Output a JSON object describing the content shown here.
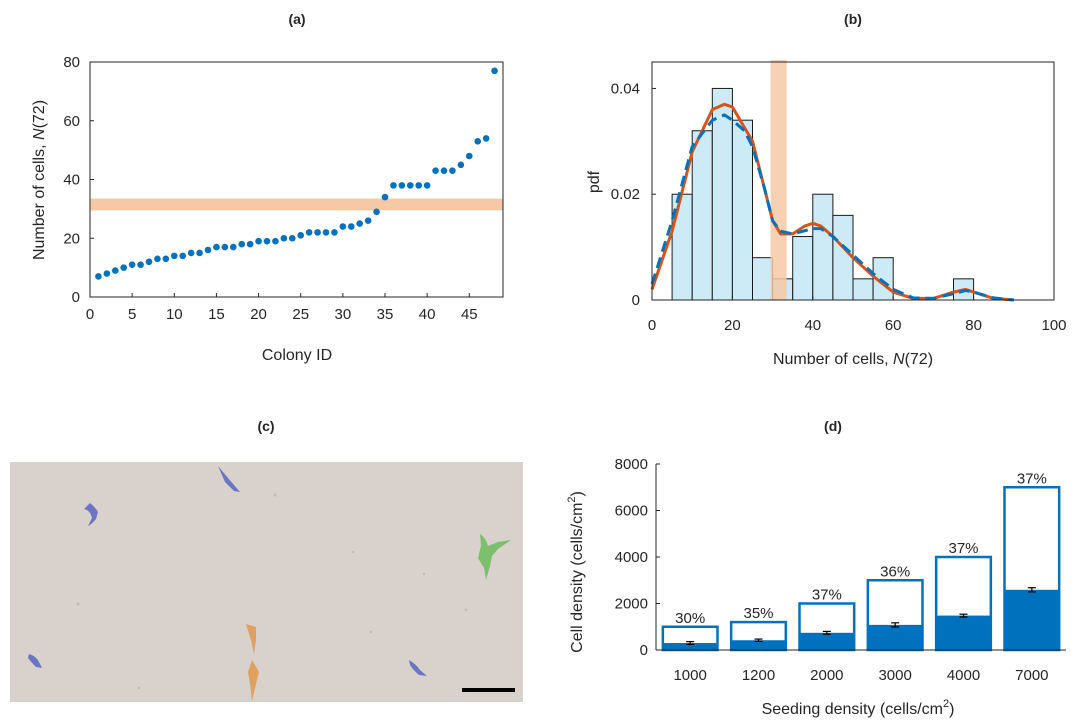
{
  "chart_data": [
    {
      "panel": "(a)",
      "type": "scatter",
      "xlabel": "Colony ID",
      "ylabel_prefix": "Number of cells, ",
      "ylabel_var": "N",
      "ylabel_suffix": "(72)",
      "xlim": [
        0,
        49
      ],
      "ylim": [
        0,
        80
      ],
      "xticks": [
        0,
        5,
        10,
        15,
        20,
        25,
        30,
        35,
        40,
        45
      ],
      "yticks": [
        0,
        20,
        40,
        60,
        80
      ],
      "band": [
        29.5,
        33.5
      ],
      "colors": {
        "points": "#0072BD",
        "band": "#F5C9A6"
      },
      "x": [
        1,
        2,
        3,
        4,
        5,
        6,
        7,
        8,
        9,
        10,
        11,
        12,
        13,
        14,
        15,
        16,
        17,
        18,
        19,
        20,
        21,
        22,
        23,
        24,
        25,
        26,
        27,
        28,
        29,
        30,
        31,
        32,
        33,
        34,
        35,
        36,
        37,
        38,
        39,
        40,
        41,
        42,
        43,
        44,
        45,
        46,
        47,
        48
      ],
      "y": [
        7,
        8,
        9,
        10,
        11,
        11,
        12,
        13,
        13,
        14,
        14,
        15,
        15,
        16,
        17,
        17,
        17,
        18,
        18,
        19,
        19,
        19,
        20,
        20,
        21,
        22,
        22,
        22,
        22,
        24,
        24,
        25,
        26,
        29,
        34,
        38,
        38,
        38,
        38,
        38,
        43,
        43,
        43,
        45,
        48,
        53,
        54,
        77
      ]
    },
    {
      "panel": "(b)",
      "type": "histogram",
      "xlabel_prefix": "Number of cells, ",
      "xlabel_var": "N",
      "xlabel_suffix": "(72)",
      "ylabel": "pdf",
      "xlim": [
        0,
        100
      ],
      "ylim": [
        0,
        0.045
      ],
      "xticks": [
        0,
        20,
        40,
        60,
        80,
        100
      ],
      "yticks": [
        0,
        0.02,
        0.04
      ],
      "ytick_labels": [
        "0",
        "0.02",
        "0.04"
      ],
      "bin_edges": [
        5,
        10,
        15,
        20,
        25,
        30,
        35,
        40,
        45,
        50,
        55,
        60,
        65,
        70,
        75,
        80
      ],
      "densities": [
        0.02,
        0.032,
        0.04,
        0.034,
        0.008,
        0.004,
        0.012,
        0.02,
        0.016,
        0.004,
        0.008,
        0,
        0,
        0,
        0.004
      ],
      "band": [
        29.5,
        33.5
      ],
      "curve_solid": {
        "x": [
          0,
          5,
          10,
          15,
          18,
          20,
          25,
          28,
          30,
          32,
          35,
          38,
          40,
          42,
          45,
          50,
          55,
          60,
          65,
          70,
          75,
          78,
          80,
          85,
          90
        ],
        "y": [
          0.002,
          0.013,
          0.028,
          0.036,
          0.037,
          0.0365,
          0.03,
          0.021,
          0.015,
          0.0125,
          0.0125,
          0.014,
          0.0145,
          0.014,
          0.012,
          0.008,
          0.0045,
          0.0015,
          0.0003,
          0.0003,
          0.0015,
          0.002,
          0.0015,
          0.0003,
          0
        ]
      },
      "curve_dashed": {
        "x": [
          0,
          5,
          10,
          15,
          18,
          20,
          23,
          25,
          28,
          30,
          32,
          35,
          40,
          42,
          45,
          50,
          55,
          60,
          65,
          70,
          75,
          78,
          80,
          85,
          90
        ],
        "y": [
          0.003,
          0.015,
          0.029,
          0.034,
          0.035,
          0.034,
          0.032,
          0.029,
          0.021,
          0.015,
          0.013,
          0.0125,
          0.0135,
          0.0135,
          0.012,
          0.0085,
          0.005,
          0.002,
          0.0004,
          0.0003,
          0.0012,
          0.0018,
          0.0015,
          0.0004,
          0
        ]
      },
      "colors": {
        "bars": "#CDEBF7",
        "bar_edge": "#1a1a1a",
        "solid": "#D95319",
        "dashed": "#0072BD",
        "band": "#F5C9A6"
      }
    },
    {
      "panel": "(c)",
      "type": "image",
      "description_colors": {
        "background": "#D8D1CC",
        "blue": "#6A76C4",
        "green": "#7CBF6C",
        "orange": "#E0A060",
        "scalebar": "#000000"
      }
    },
    {
      "panel": "(d)",
      "type": "bar",
      "categories": [
        "1000",
        "1200",
        "2000",
        "3000",
        "4000",
        "7000"
      ],
      "seeding": [
        1000,
        1200,
        2000,
        3000,
        4000,
        7000
      ],
      "measured": [
        300,
        420,
        740,
        1080,
        1480,
        2590
      ],
      "errors": [
        60,
        50,
        60,
        90,
        60,
        90
      ],
      "percent_labels": [
        "30%",
        "35%",
        "37%",
        "36%",
        "37%",
        "37%"
      ],
      "xlabel": "Seeding density (cells/cm",
      "xlabel_sup": "2",
      "xlabel_close": ")",
      "ylabel": "Cell density (cells/cm",
      "ylabel_sup": "2",
      "ylabel_close": ")",
      "ylim": [
        0,
        8000
      ],
      "yticks": [
        0,
        2000,
        4000,
        6000,
        8000
      ],
      "colors": {
        "bar": "#0072BD",
        "outline": "#0072BD",
        "error": "#000000"
      }
    }
  ]
}
